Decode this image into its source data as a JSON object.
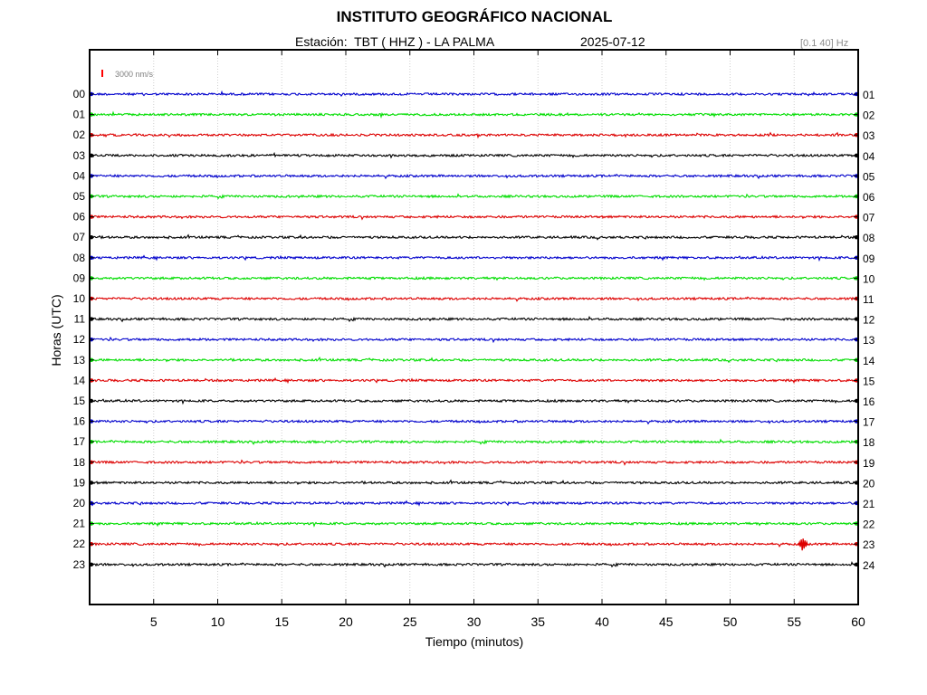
{
  "title": "INSTITUTO GEOGRÁFICO NACIONAL",
  "station": {
    "label": "Estación:",
    "name": "TBT ( HHZ ) - LA PALMA",
    "date": "2025-07-12"
  },
  "filter": "[0.1 40] Hz",
  "scale_bar": {
    "label": "3000 nm/s",
    "color": "#ff0000"
  },
  "chart_data": {
    "type": "line",
    "title": "INSTITUTO GEOGRÁFICO NACIONAL",
    "xlabel": "Tiempo (minutos)",
    "ylabel": "Horas (UTC)",
    "xlim": [
      0,
      60
    ],
    "x_ticks": [
      5,
      10,
      15,
      20,
      25,
      30,
      35,
      40,
      45,
      50,
      55,
      60
    ],
    "grid": "vertical dotted at x ticks",
    "left_tick_labels": [
      "00",
      "01",
      "02",
      "03",
      "04",
      "05",
      "06",
      "07",
      "08",
      "09",
      "10",
      "11",
      "12",
      "13",
      "14",
      "15",
      "16",
      "17",
      "18",
      "19",
      "20",
      "21",
      "22",
      "23"
    ],
    "right_tick_labels": [
      "01",
      "02",
      "03",
      "04",
      "05",
      "06",
      "07",
      "08",
      "09",
      "10",
      "11",
      "12",
      "13",
      "14",
      "15",
      "16",
      "17",
      "18",
      "19",
      "20",
      "21",
      "22",
      "23",
      "24"
    ],
    "trace_colors": [
      "#0000cc",
      "#00dd00",
      "#dd0000",
      "#000000"
    ],
    "traces": [
      {
        "hour": "00",
        "color": "#0000cc",
        "amplitude": "low"
      },
      {
        "hour": "01",
        "color": "#00dd00",
        "amplitude": "low"
      },
      {
        "hour": "02",
        "color": "#dd0000",
        "amplitude": "low"
      },
      {
        "hour": "03",
        "color": "#000000",
        "amplitude": "low"
      },
      {
        "hour": "04",
        "color": "#0000cc",
        "amplitude": "low"
      },
      {
        "hour": "05",
        "color": "#00dd00",
        "amplitude": "low"
      },
      {
        "hour": "06",
        "color": "#dd0000",
        "amplitude": "low"
      },
      {
        "hour": "07",
        "color": "#000000",
        "amplitude": "low"
      },
      {
        "hour": "08",
        "color": "#0000cc",
        "amplitude": "low"
      },
      {
        "hour": "09",
        "color": "#00dd00",
        "amplitude": "low"
      },
      {
        "hour": "10",
        "color": "#dd0000",
        "amplitude": "low"
      },
      {
        "hour": "11",
        "color": "#000000",
        "amplitude": "low"
      },
      {
        "hour": "12",
        "color": "#0000cc",
        "amplitude": "low"
      },
      {
        "hour": "13",
        "color": "#00dd00",
        "amplitude": "low"
      },
      {
        "hour": "14",
        "color": "#dd0000",
        "amplitude": "low"
      },
      {
        "hour": "15",
        "color": "#000000",
        "amplitude": "low"
      },
      {
        "hour": "16",
        "color": "#0000cc",
        "amplitude": "low"
      },
      {
        "hour": "17",
        "color": "#00dd00",
        "amplitude": "low"
      },
      {
        "hour": "18",
        "color": "#dd0000",
        "amplitude": "low"
      },
      {
        "hour": "19",
        "color": "#000000",
        "amplitude": "low"
      },
      {
        "hour": "20",
        "color": "#0000cc",
        "amplitude": "low"
      },
      {
        "hour": "21",
        "color": "#00dd00",
        "amplitude": "low"
      },
      {
        "hour": "22",
        "color": "#dd0000",
        "amplitude": "low",
        "event_minute": 55.7
      },
      {
        "hour": "23",
        "color": "#000000",
        "amplitude": "low"
      }
    ]
  }
}
